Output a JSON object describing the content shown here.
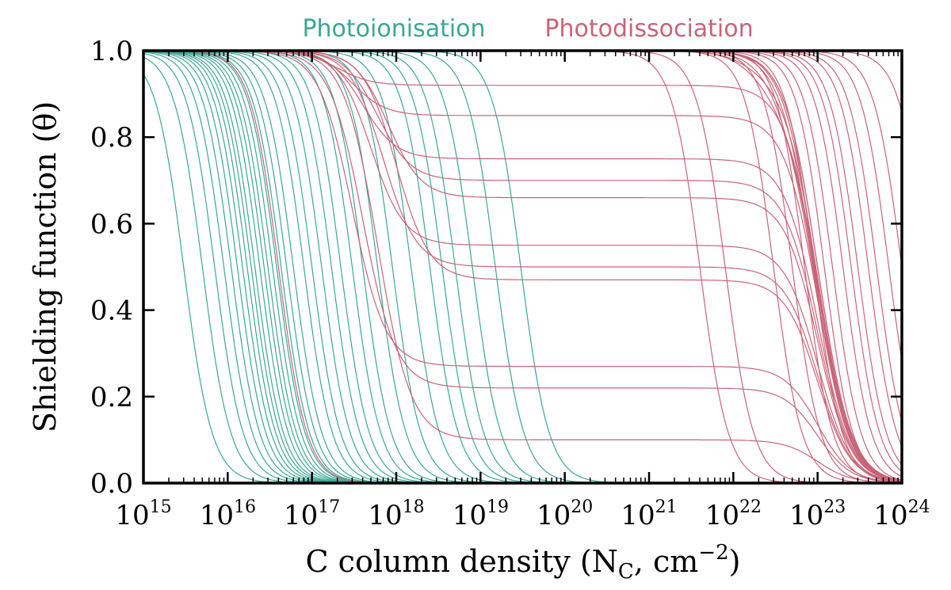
{
  "chart_data": {
    "type": "line",
    "xlabel": "C column density (N",
    "xlabel_sub": "C",
    "xlabel_unit": ", cm",
    "xlabel_exp": "−2",
    "xlabel_close": ")",
    "ylabel": "Shielding function (θ)",
    "x_scale": "log",
    "xlim": [
      1000000000000000.0,
      1e+24
    ],
    "ylim": [
      0.0,
      1.0
    ],
    "grid": false,
    "legend_placement": "top-center",
    "x_ticks": [
      {
        "base": "10",
        "exp": "15"
      },
      {
        "base": "10",
        "exp": "16"
      },
      {
        "base": "10",
        "exp": "17"
      },
      {
        "base": "10",
        "exp": "18"
      },
      {
        "base": "10",
        "exp": "19"
      },
      {
        "base": "10",
        "exp": "20"
      },
      {
        "base": "10",
        "exp": "21"
      },
      {
        "base": "10",
        "exp": "22"
      },
      {
        "base": "10",
        "exp": "23"
      },
      {
        "base": "10",
        "exp": "24"
      }
    ],
    "x_tick_values": [
      1000000000000000.0,
      1e+16,
      1e+17,
      1e+18,
      1e+19,
      1e+20,
      1e+21,
      1e+22,
      1e+23,
      1e+24
    ],
    "y_ticks": [
      "0.0",
      "0.2",
      "0.4",
      "0.6",
      "0.8",
      "1.0"
    ],
    "y_tick_values": [
      0.0,
      0.2,
      0.4,
      0.6,
      0.8,
      1.0
    ],
    "series": [
      {
        "name": "Photoionisation",
        "color": "#3aa796",
        "curves": [
          {
            "x_half": 3000000000000000.0,
            "plateau": 1.0
          },
          {
            "x_half": 5000000000000000.0,
            "plateau": 1.0
          },
          {
            "x_half": 7000000000000000.0,
            "plateau": 1.0
          },
          {
            "x_half": 9000000000000000.0,
            "plateau": 1.0
          },
          {
            "x_half": 1.1e+16,
            "plateau": 1.0
          },
          {
            "x_half": 1.3e+16,
            "plateau": 1.0
          },
          {
            "x_half": 1.5e+16,
            "plateau": 1.0
          },
          {
            "x_half": 1.7e+16,
            "plateau": 1.0
          },
          {
            "x_half": 1.9e+16,
            "plateau": 1.0
          },
          {
            "x_half": 2.1e+16,
            "plateau": 1.0
          },
          {
            "x_half": 2.4e+16,
            "plateau": 1.0
          },
          {
            "x_half": 2.7e+16,
            "plateau": 1.0
          },
          {
            "x_half": 3e+16,
            "plateau": 1.0
          },
          {
            "x_half": 3.4e+16,
            "plateau": 1.0
          },
          {
            "x_half": 3.8e+16,
            "plateau": 1.0
          },
          {
            "x_half": 4.3e+16,
            "plateau": 1.0
          },
          {
            "x_half": 5e+16,
            "plateau": 1.0
          },
          {
            "x_half": 6e+16,
            "plateau": 1.0
          },
          {
            "x_half": 8e+16,
            "plateau": 1.0
          },
          {
            "x_half": 1e+17,
            "plateau": 1.0
          },
          {
            "x_half": 1.3e+17,
            "plateau": 1.0
          },
          {
            "x_half": 1.7e+17,
            "plateau": 1.0
          },
          {
            "x_half": 2.2e+17,
            "plateau": 1.0
          },
          {
            "x_half": 3e+17,
            "plateau": 1.0
          },
          {
            "x_half": 4e+17,
            "plateau": 1.0
          },
          {
            "x_half": 6e+17,
            "plateau": 1.0
          },
          {
            "x_half": 9e+17,
            "plateau": 1.0
          },
          {
            "x_half": 1.5e+18,
            "plateau": 1.0
          },
          {
            "x_half": 2.5e+18,
            "plateau": 1.0
          },
          {
            "x_half": 3.5e+18,
            "plateau": 1.0
          },
          {
            "x_half": 5e+18,
            "plateau": 1.0
          },
          {
            "x_half": 8e+18,
            "plateau": 1.0
          },
          {
            "x_half": 1.5e+19,
            "plateau": 1.0
          },
          {
            "x_half": 3e+19,
            "plateau": 1.0
          }
        ]
      },
      {
        "name": "Photodissociation",
        "color": "#c86478",
        "curves": [
          {
            "x_half": 4e+16,
            "plateau": 1.0
          },
          {
            "x_half": 2e+17,
            "plateau": 0.92
          },
          {
            "x_half": 3e+17,
            "plateau": 0.85
          },
          {
            "x_half": 4e+17,
            "plateau": 0.75
          },
          {
            "x_half": 6e+17,
            "plateau": 0.7
          },
          {
            "x_half": 8e+17,
            "plateau": 0.66
          },
          {
            "x_half": 5e+17,
            "plateau": 0.55
          },
          {
            "x_half": 7e+17,
            "plateau": 0.5
          },
          {
            "x_half": 1e+18,
            "plateau": 0.47
          },
          {
            "x_half": 3e+17,
            "plateau": 0.27
          },
          {
            "x_half": 4e+17,
            "plateau": 0.22
          },
          {
            "x_half": 6e+17,
            "plateau": 0.1
          },
          {
            "x_half": 3e+22,
            "plateau": 1.0
          },
          {
            "x_half": 5e+22,
            "plateau": 1.0
          },
          {
            "x_half": 7e+22,
            "plateau": 1.0
          },
          {
            "x_half": 9e+22,
            "plateau": 1.0
          },
          {
            "x_half": 1.2e+23,
            "plateau": 1.0
          },
          {
            "x_half": 1.5e+23,
            "plateau": 1.0
          },
          {
            "x_half": 2e+23,
            "plateau": 1.0
          },
          {
            "x_half": 2.5e+23,
            "plateau": 1.0
          },
          {
            "x_half": 3e+23,
            "plateau": 1.0
          },
          {
            "x_half": 4e+23,
            "plateau": 1.0
          },
          {
            "x_half": 5e+23,
            "plateau": 1.0
          },
          {
            "x_half": 7e+23,
            "plateau": 1.0
          },
          {
            "x_half": 1e+24,
            "plateau": 1.0
          },
          {
            "x_half": 2e+24,
            "plateau": 1.0
          },
          {
            "x_half": 4e+21,
            "plateau": 1.0
          },
          {
            "x_half": 8e+21,
            "plateau": 1.0
          },
          {
            "x_half": 1.5e+22,
            "plateau": 0.95
          },
          {
            "x_half": 2e+22,
            "plateau": 0.9
          },
          {
            "x_half": 4e+22,
            "plateau": 0.85
          },
          {
            "x_half": 8e+22,
            "plateau": 0.8
          },
          {
            "x_half": 1.5e+23,
            "plateau": 0.75
          },
          {
            "x_half": 6e+23,
            "plateau": 0.98
          },
          {
            "x_half": 3e+24,
            "plateau": 0.99
          }
        ]
      }
    ]
  }
}
